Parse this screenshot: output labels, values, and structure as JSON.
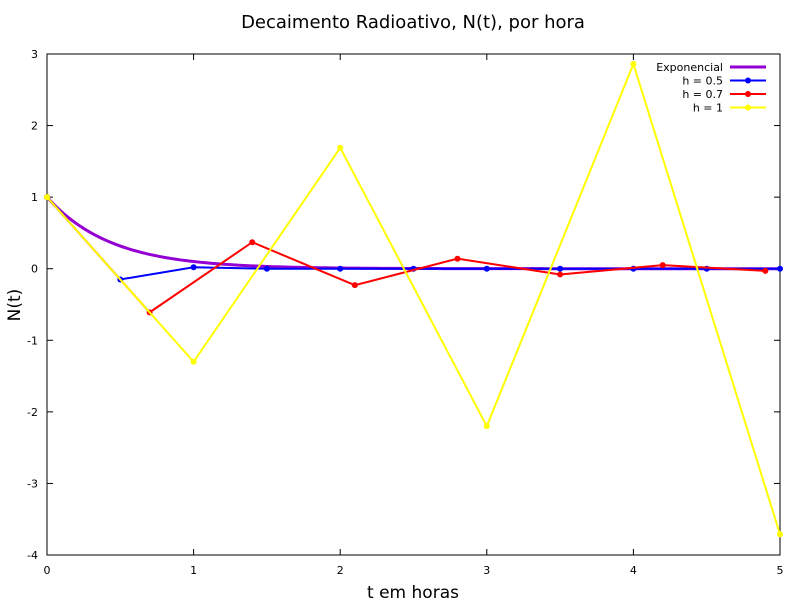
{
  "chart_data": {
    "type": "line",
    "title": "Decaimento Radioativo, N(t), por hora",
    "xlabel": "t em horas",
    "ylabel": "N(t)",
    "xlim": [
      0,
      5
    ],
    "ylim": [
      -4,
      3
    ],
    "xticks": [
      0,
      1,
      2,
      3,
      4,
      5
    ],
    "yticks": [
      -4,
      -3,
      -2,
      -1,
      0,
      1,
      2,
      3
    ],
    "grid": false,
    "legend_position": "top-right",
    "series": [
      {
        "name": "Exponencial",
        "color": "#9400d3",
        "style": "line",
        "function": "exp(-2.3*t)",
        "x_range": [
          0,
          5
        ]
      },
      {
        "name": "h = 0.5",
        "color": "#0000ff",
        "style": "linespoints",
        "x": [
          0,
          0.5,
          1.0,
          1.5,
          2.0,
          2.5,
          3.0,
          3.5,
          4.0,
          4.5,
          5.0
        ],
        "y": [
          1,
          -0.15,
          0.02,
          0.0,
          0.0,
          0.0,
          0.0,
          0.0,
          0.0,
          0.0,
          0.0
        ]
      },
      {
        "name": "h = 0.7",
        "color": "#ff0000",
        "style": "linespoints",
        "x": [
          0,
          0.7,
          1.4,
          2.1,
          2.8,
          3.5,
          4.2,
          4.9
        ],
        "y": [
          1,
          -0.61,
          0.37,
          -0.23,
          0.14,
          -0.08,
          0.05,
          -0.03
        ]
      },
      {
        "name": "h = 1",
        "color": "#ffff00",
        "style": "linespoints",
        "x": [
          0,
          1,
          2,
          3,
          4,
          5
        ],
        "y": [
          1,
          -1.3,
          1.69,
          -2.2,
          2.86,
          -3.71
        ]
      }
    ]
  }
}
